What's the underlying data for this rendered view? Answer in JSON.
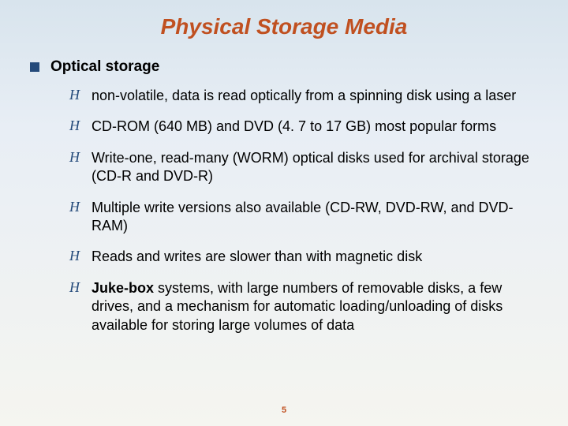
{
  "title": "Physical Storage Media",
  "heading": "Optical storage",
  "items": [
    {
      "text": "non-volatile, data is read optically from a spinning disk using a laser"
    },
    {
      "text": "CD-ROM (640 MB) and DVD (4. 7 to 17 GB) most popular forms"
    },
    {
      "text": "Write-one, read-many (WORM) optical disks used for archival storage (CD-R and DVD-R)"
    },
    {
      "text": "Multiple write versions also available (CD-RW, DVD-RW, and DVD-RAM)"
    },
    {
      "text": "Reads and writes are slower than with magnetic disk"
    },
    {
      "bold": "Juke-box",
      "rest": " systems, with large numbers of removable disks, a few drives, and a mechanism for automatic loading/unloading of disks available for storing large volumes of data"
    }
  ],
  "page_number": "5",
  "colors": {
    "title": "#c05020",
    "marker": "#244a7a",
    "text": "#000000"
  }
}
